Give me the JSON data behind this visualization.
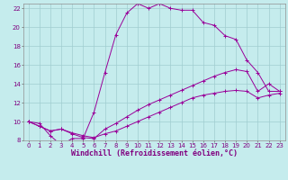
{
  "xlabel": "Windchill (Refroidissement éolien,°C)",
  "xlim": [
    -0.5,
    23.5
  ],
  "ylim": [
    8,
    22.5
  ],
  "xticks": [
    0,
    1,
    2,
    3,
    4,
    5,
    6,
    7,
    8,
    9,
    10,
    11,
    12,
    13,
    14,
    15,
    16,
    17,
    18,
    19,
    20,
    21,
    22,
    23
  ],
  "yticks": [
    8,
    10,
    12,
    14,
    16,
    18,
    20,
    22
  ],
  "background_color": "#c5eced",
  "line_color": "#990099",
  "grid_color": "#a0cdd0",
  "line1_x": [
    0,
    1,
    2,
    3,
    4,
    5,
    6,
    7,
    8,
    9,
    10,
    11,
    12,
    13,
    14,
    15,
    16,
    17,
    18,
    19,
    20,
    21,
    22,
    23
  ],
  "line1_y": [
    10.0,
    9.8,
    8.5,
    7.5,
    8.2,
    8.2,
    11.0,
    15.2,
    19.2,
    21.5,
    22.5,
    22.0,
    22.5,
    22.0,
    21.8,
    21.8,
    20.5,
    20.2,
    19.1,
    18.7,
    16.5,
    15.2,
    13.2,
    13.2
  ],
  "line2_x": [
    0,
    1,
    2,
    3,
    4,
    5,
    6,
    7,
    8,
    9,
    10,
    11,
    12,
    13,
    14,
    15,
    16,
    17,
    18,
    19,
    20,
    21,
    22,
    23
  ],
  "line2_y": [
    10.0,
    9.5,
    9.0,
    9.2,
    8.7,
    8.3,
    8.2,
    9.2,
    9.8,
    10.5,
    11.2,
    11.8,
    12.3,
    12.8,
    13.3,
    13.8,
    14.3,
    14.8,
    15.2,
    15.5,
    15.3,
    13.2,
    14.0,
    13.2
  ],
  "line3_x": [
    0,
    1,
    2,
    3,
    4,
    5,
    6,
    7,
    8,
    9,
    10,
    11,
    12,
    13,
    14,
    15,
    16,
    17,
    18,
    19,
    20,
    21,
    22,
    23
  ],
  "line3_y": [
    10.0,
    9.5,
    9.0,
    9.2,
    8.8,
    8.5,
    8.3,
    8.7,
    9.0,
    9.5,
    10.0,
    10.5,
    11.0,
    11.5,
    12.0,
    12.5,
    12.8,
    13.0,
    13.2,
    13.3,
    13.2,
    12.5,
    12.8,
    13.0
  ],
  "tick_fontsize": 5.0,
  "xlabel_fontsize": 6.0
}
